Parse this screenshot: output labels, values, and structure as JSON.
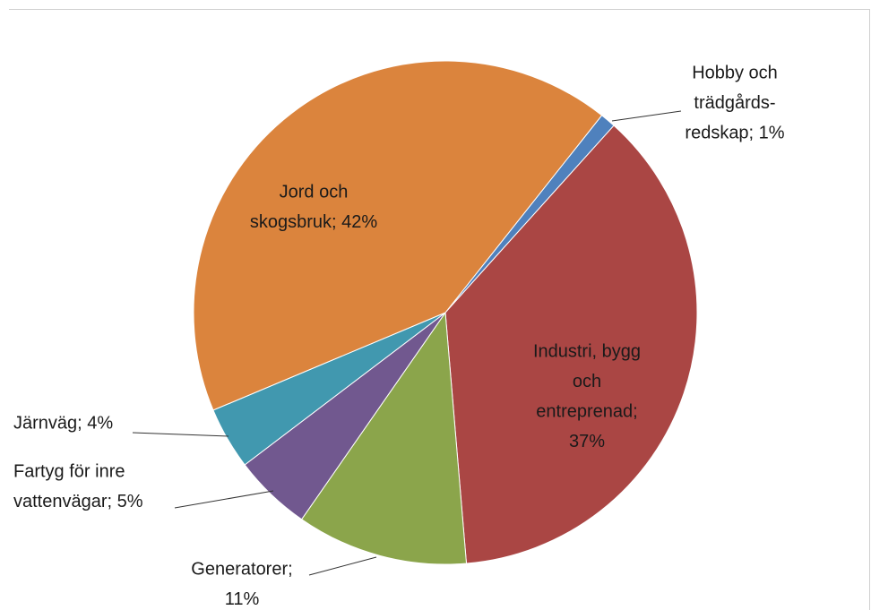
{
  "chart_data": {
    "type": "pie",
    "values": [
      1,
      37,
      11,
      5,
      4,
      42
    ],
    "value_labels": [
      [
        "Hobby och",
        "trädgårds-",
        "redskap; 1%"
      ],
      [
        "Industri, bygg",
        "och",
        "entreprenad;",
        "37%"
      ],
      [
        "Generatorer;",
        "11%"
      ],
      [
        "Fartyg för inre",
        "vattenvägar; 5%"
      ],
      [
        "Järnväg; 4%"
      ],
      [
        "Jord och",
        "skogsbruk; 42%"
      ]
    ],
    "colors": [
      "#4f81bd",
      "#aa4644",
      "#8ba54b",
      "#71588f",
      "#4198af",
      "#db843d"
    ]
  }
}
